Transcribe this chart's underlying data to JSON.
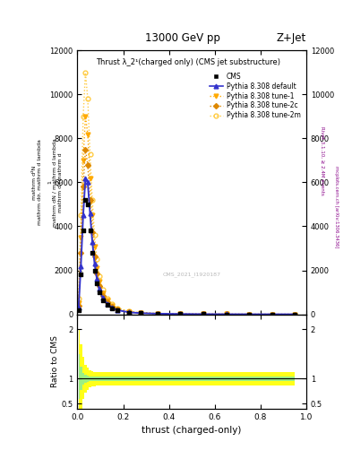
{
  "title_top": "13000 GeV pp",
  "title_right": "Z+Jet",
  "plot_title": "Thrust λ_2¹(charged only) (CMS jet substructure)",
  "xlabel": "thrust (charged-only)",
  "ylabel_ratio": "Ratio to CMS",
  "right_label_top": "Rivet 3.1.10, ≥ 2.4M events",
  "right_label_bottom": "mcplots.cern.ch [arXiv:1306.3436]",
  "watermark": "CMS_2021_I1920187",
  "x_thrust": [
    0.005,
    0.015,
    0.025,
    0.035,
    0.045,
    0.055,
    0.065,
    0.075,
    0.085,
    0.095,
    0.11,
    0.13,
    0.15,
    0.175,
    0.225,
    0.275,
    0.35,
    0.45,
    0.55,
    0.65,
    0.75,
    0.85,
    0.95
  ],
  "cms_y": [
    200,
    1800,
    3800,
    5200,
    5000,
    3800,
    2800,
    2000,
    1400,
    1000,
    650,
    420,
    280,
    170,
    80,
    48,
    25,
    12,
    6,
    3,
    1.5,
    0.8,
    0.3
  ],
  "pythia_default_y": [
    300,
    2200,
    4500,
    6200,
    6000,
    4600,
    3300,
    2300,
    1600,
    1150,
    750,
    480,
    310,
    190,
    92,
    54,
    28,
    14,
    7,
    3.5,
    1.8,
    0.9,
    0.4
  ],
  "pythia_tune1_y": [
    500,
    3500,
    7000,
    9000,
    8200,
    6200,
    4500,
    3100,
    2100,
    1500,
    980,
    620,
    405,
    245,
    118,
    68,
    35,
    17,
    8.5,
    4.2,
    2,
    1,
    0.4
  ],
  "pythia_tune2c_y": [
    400,
    2800,
    5800,
    7500,
    6800,
    5200,
    3750,
    2650,
    1850,
    1300,
    855,
    545,
    358,
    218,
    104,
    61,
    32,
    16,
    8,
    4,
    1.9,
    0.95,
    0.4
  ],
  "pythia_tune2m_y": [
    700,
    4500,
    9000,
    11000,
    9800,
    7300,
    5200,
    3600,
    2500,
    1750,
    1140,
    720,
    470,
    285,
    138,
    80,
    41,
    20,
    10,
    5,
    2.3,
    1.1,
    0.4
  ],
  "ratio_green_upper": [
    1.5,
    1.25,
    1.12,
    1.08,
    1.06,
    1.05,
    1.04,
    1.04,
    1.04,
    1.04,
    1.04,
    1.04,
    1.04,
    1.04,
    1.04,
    1.04,
    1.04,
    1.04,
    1.04,
    1.04,
    1.04,
    1.04,
    1.04
  ],
  "ratio_green_lower": [
    0.6,
    0.78,
    0.88,
    0.92,
    0.94,
    0.95,
    0.96,
    0.96,
    0.96,
    0.96,
    0.96,
    0.96,
    0.96,
    0.96,
    0.96,
    0.96,
    0.96,
    0.96,
    0.96,
    0.96,
    0.96,
    0.96,
    0.96
  ],
  "ratio_yellow_upper": [
    2.0,
    1.7,
    1.45,
    1.28,
    1.22,
    1.18,
    1.15,
    1.14,
    1.13,
    1.13,
    1.13,
    1.13,
    1.13,
    1.13,
    1.13,
    1.13,
    1.13,
    1.13,
    1.13,
    1.13,
    1.13,
    1.13,
    1.13
  ],
  "ratio_yellow_lower": [
    0.2,
    0.4,
    0.6,
    0.72,
    0.78,
    0.82,
    0.84,
    0.85,
    0.86,
    0.86,
    0.86,
    0.86,
    0.86,
    0.86,
    0.86,
    0.86,
    0.86,
    0.86,
    0.86,
    0.86,
    0.86,
    0.86,
    0.86
  ],
  "color_blue": "#3333cc",
  "color_orange_dark": "#dd8800",
  "color_orange_med": "#ffaa00",
  "color_orange_light": "#ffcc44",
  "ylim_main": [
    0,
    12000
  ],
  "yticks_main": [
    0,
    2000,
    4000,
    6000,
    8000,
    10000,
    12000
  ],
  "ylim_ratio": [
    0.4,
    2.3
  ],
  "yticks_ratio": [
    0.5,
    1.0,
    2.0
  ]
}
